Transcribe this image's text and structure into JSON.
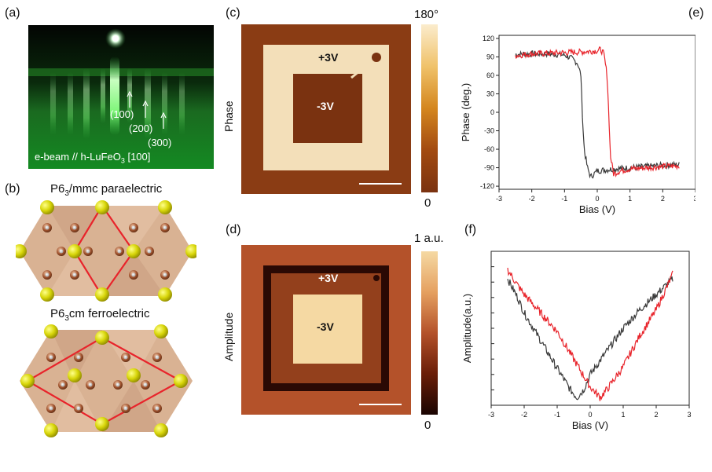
{
  "panels": {
    "a": "(a)",
    "b": "(b)",
    "c": "(c)",
    "d": "(d)",
    "e": "(e)",
    "f": "(f)"
  },
  "rheed": {
    "spot_100": "(100)",
    "spot_200": "(200)",
    "spot_300": "(300)",
    "caption_main": "e-beam // h-LuFeO",
    "caption_sub": "3",
    "caption_tail": " [100]"
  },
  "crystal": {
    "top_title_a": "P6",
    "top_title_sub": "3",
    "top_title_b": "/mmc paraelectric",
    "bottom_title_a": "P6",
    "bottom_title_sub": "3",
    "bottom_title_b": "cm ferroelectric"
  },
  "pfm": {
    "phase_ylabel": "Phase",
    "amp_ylabel": "Amplitude",
    "plus_label": "+3V",
    "minus_label": "-3V",
    "phase_scale_max": "180°",
    "phase_scale_min": "0",
    "amp_scale_max": "1 a.u.",
    "amp_scale_min": "0"
  },
  "colors": {
    "red_curve": "#e8242b",
    "black_curve": "#3a3a3a",
    "phase_dark": "#7a3210",
    "phase_light": "#fbeccd",
    "amp_dark": "#2a0904",
    "amp_light": "#f5d9a3"
  },
  "chart_data": [
    {
      "type": "line",
      "panel": "e",
      "title": "",
      "xlabel": "Bias (V)",
      "ylabel": "Phase (deg.)",
      "xlim": [
        -3,
        3
      ],
      "ylim": [
        -125,
        125
      ],
      "xticks": [
        "-3",
        "-2",
        "-1",
        "0",
        "1",
        "2",
        "3"
      ],
      "yticks": [
        "120",
        "90",
        "60",
        "30",
        "0",
        "-30",
        "-60",
        "-90",
        "-120"
      ],
      "series": [
        {
          "color": "black",
          "x": [
            -2.5,
            -2.0,
            -1.5,
            -1.0,
            -0.8,
            -0.6,
            -0.5,
            -0.45,
            -0.4,
            -0.3,
            -0.2,
            -0.1,
            0.0,
            0.5,
            1.0,
            1.5,
            2.0,
            2.5
          ],
          "y": [
            94,
            95,
            95,
            93,
            88,
            80,
            60,
            -10,
            -60,
            -90,
            -105,
            -100,
            -95,
            -92,
            -90,
            -88,
            -86,
            -85
          ]
        },
        {
          "color": "red",
          "x": [
            -2.5,
            -2.0,
            -1.5,
            -1.0,
            -0.5,
            0.0,
            0.1,
            0.2,
            0.3,
            0.35,
            0.4,
            0.5,
            0.7,
            1.0,
            1.5,
            2.0,
            2.5
          ],
          "y": [
            92,
            95,
            96,
            97,
            98,
            100,
            102,
            95,
            60,
            0,
            -70,
            -100,
            -95,
            -92,
            -90,
            -88,
            -87
          ]
        }
      ]
    },
    {
      "type": "line",
      "panel": "f",
      "title": "",
      "xlabel": "Bias (V)",
      "ylabel": "Amplitude(a.u.)",
      "xlim": [
        -3,
        3
      ],
      "ylim": [
        0,
        1
      ],
      "xticks": [
        "-3",
        "-2",
        "-1",
        "0",
        "1",
        "2",
        "3"
      ],
      "series": [
        {
          "color": "black",
          "x": [
            -2.5,
            -2.2,
            -2.0,
            -1.5,
            -1.0,
            -0.6,
            -0.4,
            -0.2,
            0.0,
            0.5,
            1.0,
            1.5,
            2.0,
            2.5
          ],
          "y": [
            0.82,
            0.7,
            0.6,
            0.42,
            0.24,
            0.1,
            0.05,
            0.1,
            0.2,
            0.35,
            0.5,
            0.62,
            0.72,
            0.82
          ]
        },
        {
          "color": "red",
          "x": [
            -2.5,
            -2.2,
            -2.0,
            -1.5,
            -1.0,
            -0.5,
            0.0,
            0.3,
            0.5,
            1.0,
            1.5,
            2.0,
            2.5
          ],
          "y": [
            0.88,
            0.78,
            0.72,
            0.6,
            0.48,
            0.3,
            0.12,
            0.05,
            0.1,
            0.25,
            0.45,
            0.62,
            0.85
          ]
        }
      ]
    }
  ]
}
